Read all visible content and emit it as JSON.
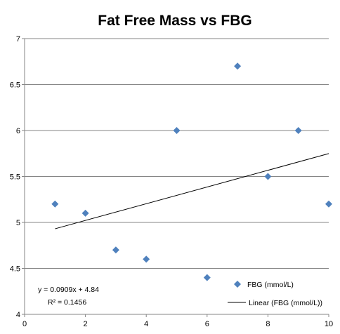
{
  "chart_data": {
    "type": "scatter",
    "title": "Fat Free Mass vs FBG",
    "xlabel": "",
    "ylabel": "",
    "xlim": [
      0,
      10
    ],
    "ylim": [
      4,
      7
    ],
    "x_ticks": [
      0,
      2,
      4,
      6,
      8,
      10
    ],
    "y_ticks": [
      4,
      4.5,
      5,
      5.5,
      6,
      6.5,
      7
    ],
    "grid": "horizontal",
    "legend_position": "bottom-right",
    "series": [
      {
        "name": "FBG (mmol/L)",
        "marker": "diamond",
        "color": "#4F81BD",
        "x": [
          1,
          2,
          3,
          4,
          5,
          6,
          7,
          8,
          9,
          10
        ],
        "y": [
          5.2,
          5.1,
          4.7,
          4.6,
          6.0,
          4.4,
          6.7,
          5.5,
          6.0,
          5.2
        ]
      }
    ],
    "trendline": {
      "name": "Linear (FBG (mmol/L))",
      "type": "linear",
      "slope": 0.0909,
      "intercept": 4.84,
      "x_start": 1,
      "x_end": 10,
      "color": "#000000"
    },
    "annotation": {
      "equation": "y = 0.0909x + 4.84",
      "r_squared": "R² = 0.1456"
    }
  }
}
